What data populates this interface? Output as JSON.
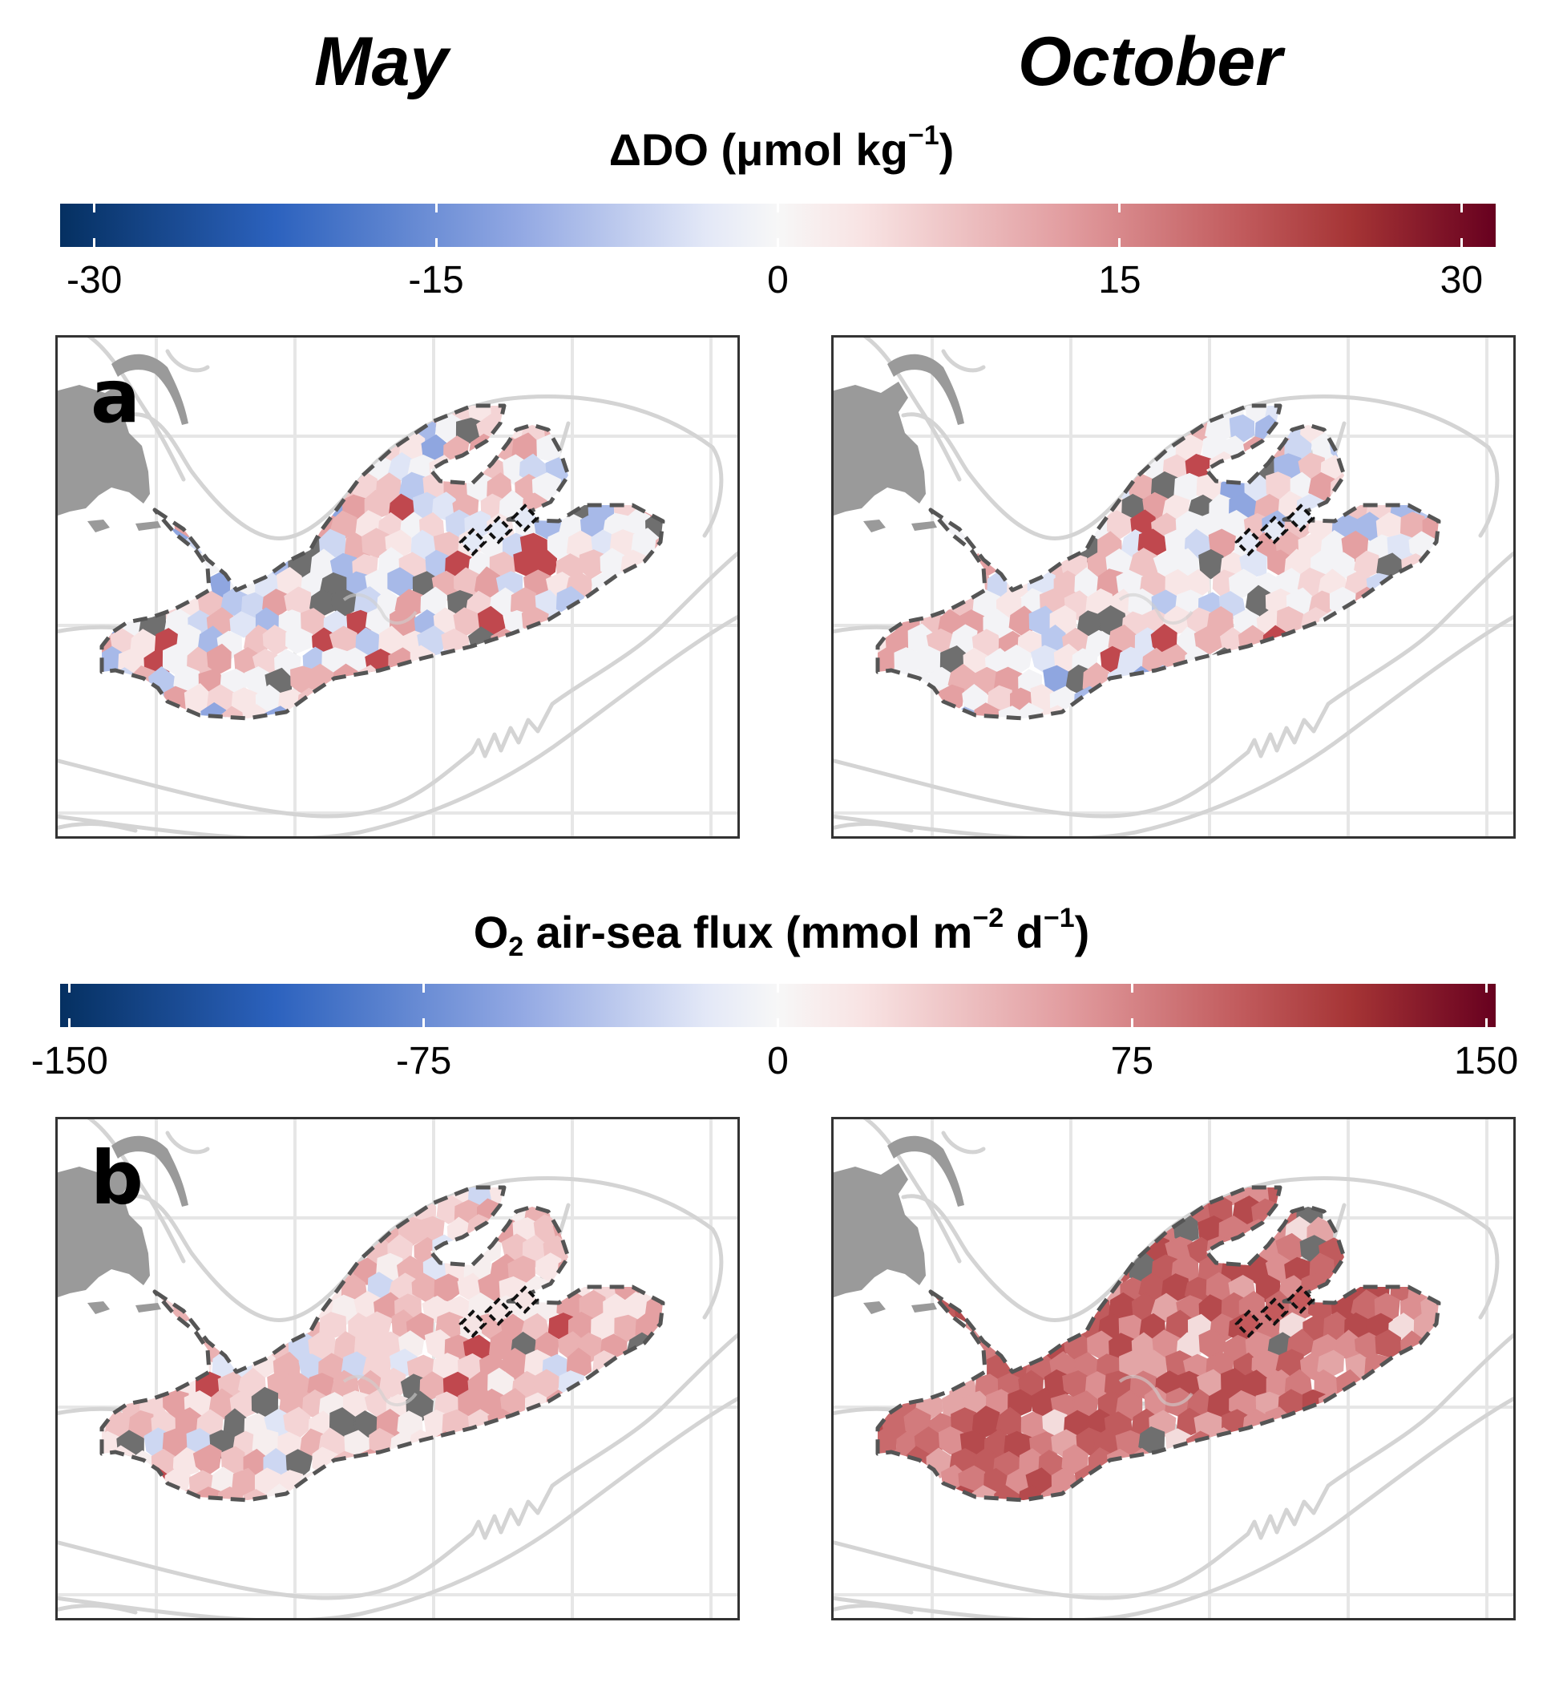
{
  "headers": {
    "left": "May",
    "right": "October"
  },
  "colorbars": [
    {
      "title": "ΔDO (μmol kg",
      "title_sup": "−1",
      "title_close": ")",
      "ticks": [
        -30,
        -15,
        0,
        15,
        30
      ],
      "tick_labels": [
        "-30",
        "-15",
        "0",
        "15",
        "30"
      ],
      "range": [
        -31.5,
        31.5
      ],
      "colormap": [
        "#053061",
        "#2c62be",
        "#92a8e3",
        "#f7f7f7",
        "#e29da0",
        "#a53435",
        "#67001f"
      ]
    },
    {
      "title_pre": "O",
      "title_sub": "2",
      "title_mid": " air-sea flux (mmol m",
      "title_sup1": "−2",
      "title_mid2": " d",
      "title_sup2": "−1",
      "title_close": ")",
      "ticks": [
        -150,
        -75,
        0,
        75,
        150
      ],
      "tick_labels": [
        "-150",
        "-75",
        "0",
        "75",
        "150"
      ],
      "range": [
        -152,
        152
      ]
    }
  ],
  "panels": [
    {
      "letter": "a",
      "variable": "ΔDO",
      "month": "May",
      "tone": "mixed-weak"
    },
    {
      "letter": "",
      "variable": "ΔDO",
      "month": "October",
      "tone": "mixed-weak"
    },
    {
      "letter": "b",
      "variable": "O2 air-sea flux",
      "month": "May",
      "tone": "light-red"
    },
    {
      "letter": "",
      "variable": "O2 air-sea flux",
      "month": "October",
      "tone": "strong-red"
    }
  ],
  "colors": {
    "land": "#9a9a9a",
    "missing_cell": "#6f6f6f",
    "boundary": "#555555",
    "bathymetry": "#d4d4d4",
    "grid": "#e6e6e6",
    "frame": "#333333"
  }
}
